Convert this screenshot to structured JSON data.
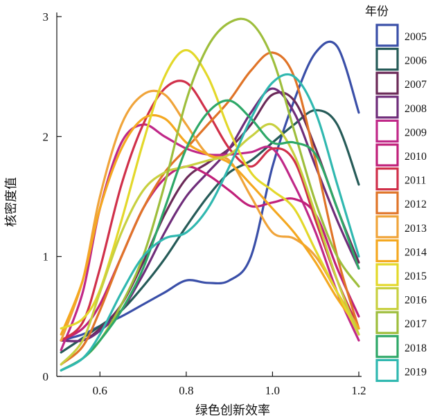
{
  "chart_data": {
    "type": "line",
    "title": "",
    "xlabel": "绿色创新效率",
    "ylabel": "核密度值",
    "xlim": [
      0.5,
      1.2
    ],
    "ylim": [
      0,
      3
    ],
    "x_ticks": [
      "0.6",
      "0.8",
      "1.0",
      "1.2"
    ],
    "y_ticks": [
      "0",
      "1",
      "2",
      "3"
    ],
    "legend_title": "年份",
    "legend_position": "right",
    "x": [
      0.51,
      0.56,
      0.6,
      0.65,
      0.7,
      0.75,
      0.8,
      0.85,
      0.9,
      0.95,
      1.0,
      1.05,
      1.1,
      1.15,
      1.2
    ],
    "series": [
      {
        "name": "2005",
        "color": "#3a4fa8",
        "values": [
          0.3,
          0.35,
          0.42,
          0.5,
          0.6,
          0.7,
          0.8,
          0.78,
          0.8,
          1.0,
          1.75,
          2.3,
          2.7,
          2.75,
          2.2
        ]
      },
      {
        "name": "2006",
        "color": "#265b58",
        "values": [
          0.2,
          0.32,
          0.42,
          0.55,
          0.75,
          0.98,
          1.25,
          1.5,
          1.7,
          1.8,
          1.95,
          2.1,
          2.22,
          2.1,
          1.6
        ]
      },
      {
        "name": "2007",
        "color": "#6b2a58",
        "values": [
          0.3,
          0.3,
          0.4,
          0.6,
          0.95,
          1.35,
          1.65,
          1.78,
          1.9,
          2.1,
          2.35,
          2.3,
          1.9,
          1.4,
          0.95
        ]
      },
      {
        "name": "2008",
        "color": "#6f2d7a",
        "values": [
          0.3,
          0.3,
          0.38,
          0.55,
          0.85,
          1.2,
          1.5,
          1.7,
          1.9,
          2.2,
          2.4,
          2.2,
          1.75,
          1.3,
          0.9
        ]
      },
      {
        "name": "2009",
        "color": "#c02888",
        "values": [
          0.22,
          0.7,
          1.4,
          1.95,
          2.1,
          2.0,
          1.9,
          1.85,
          1.85,
          1.87,
          1.9,
          1.6,
          1.2,
          0.7,
          0.3
        ]
      },
      {
        "name": "2010",
        "color": "#c0207a",
        "values": [
          0.3,
          0.4,
          0.6,
          1.0,
          1.4,
          1.65,
          1.75,
          1.68,
          1.55,
          1.42,
          1.45,
          1.48,
          1.35,
          0.9,
          0.5
        ]
      },
      {
        "name": "2011",
        "color": "#d0304a",
        "values": [
          0.3,
          0.45,
          0.9,
          1.6,
          2.1,
          2.4,
          2.45,
          2.2,
          1.9,
          1.75,
          1.9,
          1.8,
          1.3,
          0.8,
          0.4
        ]
      },
      {
        "name": "2012",
        "color": "#e07428",
        "values": [
          0.1,
          0.25,
          0.55,
          1.0,
          1.4,
          1.7,
          1.9,
          2.1,
          2.3,
          2.55,
          2.7,
          2.5,
          1.8,
          1.0,
          0.4
        ]
      },
      {
        "name": "2013",
        "color": "#f0a43a",
        "values": [
          0.3,
          0.8,
          1.5,
          2.1,
          2.35,
          2.35,
          2.1,
          1.85,
          1.8,
          1.5,
          1.2,
          1.15,
          1.0,
          0.7,
          0.4
        ]
      },
      {
        "name": "2014",
        "color": "#f4a820",
        "values": [
          0.35,
          0.8,
          1.4,
          1.9,
          2.15,
          2.15,
          1.95,
          1.85,
          1.78,
          1.6,
          1.4,
          1.2,
          0.95,
          0.65,
          0.4
        ]
      },
      {
        "name": "2015",
        "color": "#e3d82a",
        "values": [
          0.4,
          0.48,
          0.72,
          1.3,
          1.95,
          2.5,
          2.72,
          2.5,
          2.05,
          1.7,
          1.55,
          1.4,
          1.05,
          0.7,
          0.35
        ]
      },
      {
        "name": "2016",
        "color": "#c8d040",
        "values": [
          0.1,
          0.3,
          0.7,
          1.2,
          1.55,
          1.7,
          1.75,
          1.8,
          1.85,
          2.0,
          2.1,
          1.85,
          1.35,
          0.8,
          0.35
        ]
      },
      {
        "name": "2017",
        "color": "#9ebe3c",
        "values": [
          0.05,
          0.15,
          0.3,
          0.6,
          1.0,
          1.6,
          2.3,
          2.75,
          2.95,
          2.95,
          2.65,
          2.05,
          1.45,
          1.0,
          0.75
        ]
      },
      {
        "name": "2018",
        "color": "#2ea868",
        "values": [
          0.05,
          0.15,
          0.3,
          0.55,
          0.9,
          1.4,
          1.9,
          2.2,
          2.3,
          2.15,
          1.95,
          1.95,
          1.85,
          1.4,
          0.9
        ]
      },
      {
        "name": "2019",
        "color": "#30b8b0",
        "values": [
          0.05,
          0.15,
          0.35,
          0.7,
          1.0,
          1.15,
          1.2,
          1.4,
          1.75,
          2.15,
          2.45,
          2.5,
          2.2,
          1.6,
          1.0
        ]
      }
    ]
  }
}
